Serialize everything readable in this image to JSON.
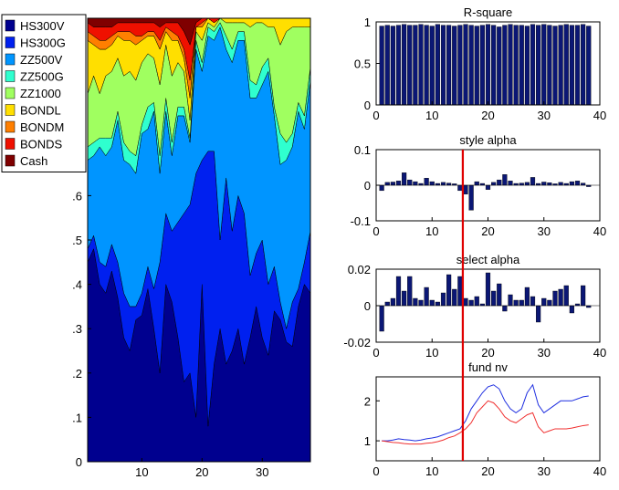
{
  "chart_data": [
    {
      "id": "style_weights",
      "type": "area",
      "title": "",
      "xlabel": "",
      "ylabel": "",
      "xlim": [
        1,
        38
      ],
      "ylim": [
        0,
        1
      ],
      "xticks": [
        10,
        20,
        30
      ],
      "yticks": [
        0,
        0.1,
        0.2,
        0.3,
        0.4,
        0.5,
        0.6
      ],
      "stacked": true,
      "legend": {
        "position": "top-left"
      },
      "x": [
        1,
        2,
        3,
        4,
        5,
        6,
        7,
        8,
        9,
        10,
        11,
        12,
        13,
        14,
        15,
        16,
        17,
        18,
        19,
        20,
        21,
        22,
        23,
        24,
        25,
        26,
        27,
        28,
        29,
        30,
        31,
        32,
        33,
        34,
        35,
        36,
        37,
        38
      ],
      "series": [
        {
          "name": "HS300V",
          "color": "#00008f",
          "values": [
            0.45,
            0.48,
            0.4,
            0.38,
            0.43,
            0.37,
            0.28,
            0.25,
            0.32,
            0.33,
            0.39,
            0.3,
            0.2,
            0.4,
            0.36,
            0.28,
            0.18,
            0.2,
            0.1,
            0.4,
            0.08,
            0.22,
            0.3,
            0.22,
            0.25,
            0.3,
            0.22,
            0.28,
            0.35,
            0.28,
            0.24,
            0.34,
            0.32,
            0.27,
            0.26,
            0.35,
            0.4,
            0.38
          ]
        },
        {
          "name": "HS300G",
          "color": "#0020ef",
          "values": [
            0.03,
            0.03,
            0.05,
            0.06,
            0.06,
            0.08,
            0.1,
            0.1,
            0.03,
            0.05,
            0.05,
            0.09,
            0.25,
            0.16,
            0.16,
            0.26,
            0.38,
            0.38,
            0.55,
            0.28,
            0.62,
            0.48,
            0.2,
            0.42,
            0.27,
            0.3,
            0.34,
            0.14,
            0.12,
            0.22,
            0.16,
            0.1,
            0.04,
            0.03,
            0.1,
            0.04,
            0.05,
            0.14
          ]
        },
        {
          "name": "ZZ500V",
          "color": "#0095ff",
          "values": [
            0.2,
            0.18,
            0.26,
            0.25,
            0.22,
            0.32,
            0.3,
            0.32,
            0.3,
            0.36,
            0.31,
            0.4,
            0.2,
            0.23,
            0.17,
            0.24,
            0.22,
            0.14,
            0.28,
            0.2,
            0.26,
            0.25,
            0.48,
            0.29,
            0.38,
            0.35,
            0.39,
            0.4,
            0.35,
            0.35,
            0.48,
            0.34,
            0.31,
            0.38,
            0.35,
            0.4,
            0.3,
            0.34
          ]
        },
        {
          "name": "ZZ500G",
          "color": "#2fffcf",
          "values": [
            0.03,
            0.03,
            0.02,
            0.04,
            0.02,
            0.02,
            0.04,
            0.03,
            0.04,
            0.02,
            0.05,
            0.02,
            0.04,
            0.03,
            0.03,
            0.02,
            0.02,
            0.01,
            0.02,
            0.02,
            0.02,
            0.02,
            0.01,
            0.03,
            0.03,
            0.02,
            0.02,
            0.04,
            0.03,
            0.04,
            0.03,
            0.02,
            0.07,
            0.04,
            0.03,
            0.02,
            0.03,
            0.03
          ]
        },
        {
          "name": "ZZ1000",
          "color": "#a0ff60",
          "values": [
            0.12,
            0.15,
            0.1,
            0.14,
            0.15,
            0.12,
            0.15,
            0.18,
            0.17,
            0.14,
            0.12,
            0.1,
            0.16,
            0.12,
            0.15,
            0.1,
            0.08,
            0.04,
            0.02,
            0.05,
            0.01,
            0.01,
            0.01,
            0.03,
            0.06,
            0.02,
            0.02,
            0.12,
            0.14,
            0.1,
            0.07,
            0.18,
            0.2,
            0.25,
            0.24,
            0.17,
            0.2,
            0.09
          ]
        },
        {
          "name": "BONDL",
          "color": "#ffdf00",
          "values": [
            0.12,
            0.07,
            0.1,
            0.06,
            0.06,
            0.05,
            0.08,
            0.07,
            0.08,
            0.05,
            0.04,
            0.05,
            0.08,
            0.03,
            0.08,
            0.05,
            0.03,
            0.05,
            0.01,
            0.03,
            0.01,
            0.01,
            0.0,
            0.01,
            0.01,
            0.01,
            0.01,
            0.02,
            0.01,
            0.01,
            0.02,
            0.02,
            0.06,
            0.03,
            0.02,
            0.02,
            0.02,
            0.02
          ]
        },
        {
          "name": "BONDM",
          "color": "#ff7f00",
          "values": [
            0.02,
            0.02,
            0.02,
            0.02,
            0.02,
            0.01,
            0.02,
            0.02,
            0.02,
            0.01,
            0.01,
            0.01,
            0.02,
            0.01,
            0.02,
            0.01,
            0.02,
            0.04,
            0.0,
            0.01,
            0.0,
            0.0,
            0.0,
            0.0,
            0.0,
            0.0,
            0.0,
            0.0,
            0.0,
            0.0,
            0.0,
            0.0,
            0.0,
            0.0,
            0.0,
            0.0,
            0.0,
            0.0
          ]
        },
        {
          "name": "BONDS",
          "color": "#ef1000",
          "values": [
            0.02,
            0.02,
            0.03,
            0.03,
            0.02,
            0.02,
            0.02,
            0.02,
            0.03,
            0.03,
            0.02,
            0.02,
            0.03,
            0.01,
            0.02,
            0.03,
            0.04,
            0.08,
            0.01,
            0.01,
            0.0,
            0.01,
            0.0,
            0.0,
            0.0,
            0.0,
            0.0,
            0.0,
            0.0,
            0.0,
            0.0,
            0.0,
            0.0,
            0.0,
            0.0,
            0.0,
            0.0,
            0.0
          ]
        },
        {
          "name": "Cash",
          "color": "#7f0000",
          "values": [
            0.01,
            0.02,
            0.02,
            0.02,
            0.02,
            0.01,
            0.01,
            0.01,
            0.01,
            0.01,
            0.01,
            0.01,
            0.02,
            0.01,
            0.01,
            0.01,
            0.03,
            0.06,
            0.01,
            0.0,
            0.0,
            0.0,
            0.0,
            0.0,
            0.0,
            0.0,
            0.0,
            0.0,
            0.0,
            0.0,
            0.0,
            0.0,
            0.0,
            0.0,
            0.0,
            0.0,
            0.0,
            0.0
          ]
        }
      ]
    },
    {
      "id": "r_square",
      "type": "bar",
      "title": "R-square",
      "xlim": [
        0,
        40
      ],
      "ylim": [
        0,
        1
      ],
      "xticks": [
        0,
        10,
        20,
        30,
        40
      ],
      "yticks": [
        0,
        0.5,
        1
      ],
      "bar_color": "#0b1775",
      "x": [
        1,
        2,
        3,
        4,
        5,
        6,
        7,
        8,
        9,
        10,
        11,
        12,
        13,
        14,
        15,
        16,
        17,
        18,
        19,
        20,
        21,
        22,
        23,
        24,
        25,
        26,
        27,
        28,
        29,
        30,
        31,
        32,
        33,
        34,
        35,
        36,
        37,
        38
      ],
      "values": [
        0.95,
        0.96,
        0.95,
        0.96,
        0.97,
        0.96,
        0.96,
        0.97,
        0.96,
        0.95,
        0.97,
        0.96,
        0.96,
        0.95,
        0.96,
        0.97,
        0.96,
        0.95,
        0.96,
        0.97,
        0.96,
        0.94,
        0.96,
        0.97,
        0.96,
        0.96,
        0.95,
        0.97,
        0.96,
        0.97,
        0.96,
        0.95,
        0.96,
        0.97,
        0.96,
        0.96,
        0.97,
        0.95
      ]
    },
    {
      "id": "style_alpha",
      "type": "bar",
      "title": "style alpha",
      "xlim": [
        0,
        40
      ],
      "ylim": [
        -0.1,
        0.1
      ],
      "xticks": [
        0,
        10,
        20,
        30,
        40
      ],
      "yticks": [
        -0.1,
        0,
        0.1
      ],
      "ytick_labels": [
        "-0.1",
        "0",
        "0.1"
      ],
      "bar_color": "#0b1775",
      "vline": {
        "x": 15.5,
        "color": "#e00000"
      },
      "x": [
        1,
        2,
        3,
        4,
        5,
        6,
        7,
        8,
        9,
        10,
        11,
        12,
        13,
        14,
        15,
        16,
        17,
        18,
        19,
        20,
        21,
        22,
        23,
        24,
        25,
        26,
        27,
        28,
        29,
        30,
        31,
        32,
        33,
        34,
        35,
        36,
        37,
        38
      ],
      "values": [
        -0.015,
        0.008,
        0.009,
        0.012,
        0.035,
        0.015,
        0.01,
        0.005,
        0.02,
        0.01,
        0.005,
        0.008,
        0.006,
        0.004,
        -0.015,
        -0.025,
        -0.07,
        0.01,
        0.005,
        -0.012,
        0.008,
        0.015,
        0.03,
        0.012,
        0.005,
        0.006,
        0.008,
        0.022,
        0.005,
        0.009,
        0.007,
        0.004,
        0.008,
        0.005,
        0.01,
        0.012,
        0.006,
        -0.004
      ]
    },
    {
      "id": "select_alpha",
      "type": "bar",
      "title": "select alpha",
      "xlim": [
        0,
        40
      ],
      "ylim": [
        -0.02,
        0.02
      ],
      "xticks": [
        0,
        10,
        20,
        30,
        40
      ],
      "yticks": [
        -0.02,
        0,
        0.02
      ],
      "ytick_labels": [
        "-0.02",
        "0",
        "0.02"
      ],
      "bar_color": "#0b1775",
      "vline": {
        "x": 15.5,
        "color": "#e00000"
      },
      "x": [
        1,
        2,
        3,
        4,
        5,
        6,
        7,
        8,
        9,
        10,
        11,
        12,
        13,
        14,
        15,
        16,
        17,
        18,
        19,
        20,
        21,
        22,
        23,
        24,
        25,
        26,
        27,
        28,
        29,
        30,
        31,
        32,
        33,
        34,
        35,
        36,
        37,
        38
      ],
      "values": [
        -0.014,
        0.002,
        0.004,
        0.016,
        0.008,
        0.016,
        0.004,
        0.003,
        0.01,
        0.003,
        0.002,
        0.007,
        0.017,
        0.009,
        0.016,
        0.004,
        0.003,
        0.005,
        0.001,
        0.018,
        0.008,
        0.012,
        -0.003,
        0.006,
        0.003,
        0.003,
        0.01,
        0.005,
        -0.009,
        0.004,
        0.003,
        0.008,
        0.009,
        0.011,
        -0.004,
        0.001,
        0.011,
        -0.001
      ]
    },
    {
      "id": "fund_nv",
      "type": "line",
      "title": "fund nv",
      "xlim": [
        0,
        40
      ],
      "ylim": [
        0.5,
        2.6
      ],
      "xticks": [
        0,
        10,
        20,
        30,
        40
      ],
      "yticks": [
        1,
        2
      ],
      "vline": {
        "x": 15.5,
        "color": "#e00000"
      },
      "x": [
        1,
        2,
        3,
        4,
        5,
        6,
        7,
        8,
        9,
        10,
        11,
        12,
        13,
        14,
        15,
        16,
        17,
        18,
        19,
        20,
        21,
        22,
        23,
        24,
        25,
        26,
        27,
        28,
        29,
        30,
        31,
        32,
        33,
        34,
        35,
        36,
        37,
        38
      ],
      "series": [
        {
          "color": "#1f2fe0",
          "values": [
            1.0,
            1.0,
            1.02,
            1.05,
            1.03,
            1.02,
            1.0,
            1.02,
            1.05,
            1.07,
            1.1,
            1.15,
            1.2,
            1.25,
            1.3,
            1.5,
            1.8,
            2.0,
            2.2,
            2.35,
            2.4,
            2.3,
            2.0,
            1.8,
            1.7,
            1.8,
            2.2,
            2.4,
            1.9,
            1.7,
            1.8,
            1.9,
            2.0,
            2.0,
            2.0,
            2.05,
            2.1,
            2.12
          ]
        },
        {
          "color": "#f03030",
          "values": [
            1.0,
            0.98,
            0.96,
            0.95,
            0.93,
            0.92,
            0.92,
            0.92,
            0.94,
            0.95,
            0.98,
            1.02,
            1.08,
            1.12,
            1.2,
            1.3,
            1.45,
            1.7,
            1.85,
            2.0,
            1.95,
            1.8,
            1.6,
            1.5,
            1.45,
            1.55,
            1.65,
            1.7,
            1.35,
            1.2,
            1.25,
            1.3,
            1.3,
            1.3,
            1.32,
            1.35,
            1.38,
            1.4
          ]
        }
      ]
    }
  ]
}
